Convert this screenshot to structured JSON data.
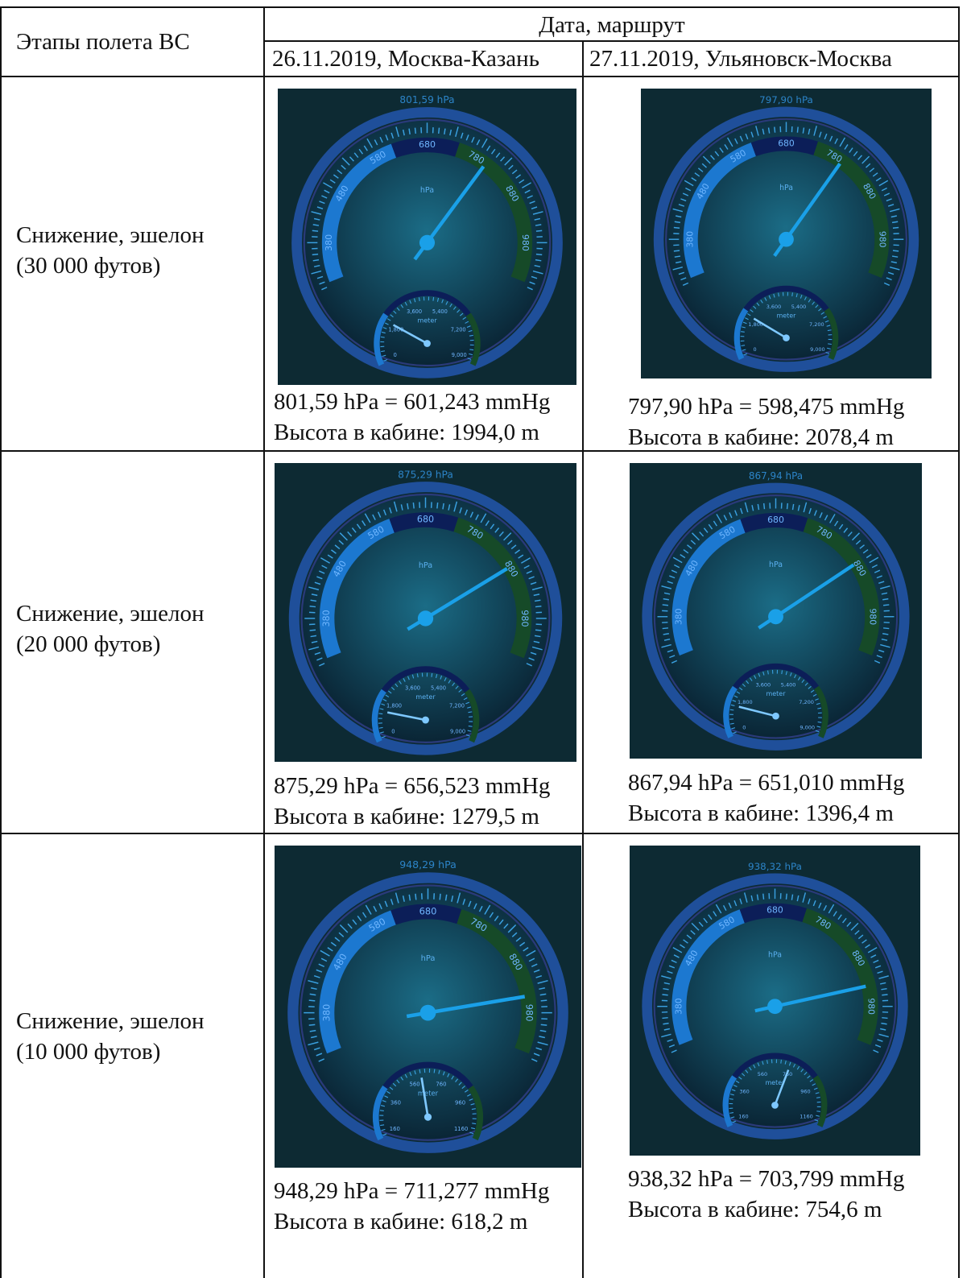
{
  "header": {
    "stage": "Этапы полета ВС",
    "date_route": "Дата, маршрут",
    "flights": [
      "26.11.2019, Москва-Казань",
      "27.11.2019, Ульяновск-Москва"
    ]
  },
  "gauge_scale": {
    "hpa": [
      "380",
      "480",
      "580",
      "680",
      "780",
      "880",
      "980"
    ],
    "unit": "hPa",
    "alt_unit": "meter"
  },
  "rows": [
    {
      "stage": "Снижение, эшелон",
      "level": "(30 000 футов)",
      "cells": [
        {
          "reading": "801,59 hPa",
          "alt_scale": [
            "0",
            "1,800",
            "3,600",
            "5,400",
            "7,200",
            "9,000"
          ],
          "pressure": "801,59 hPa = 601,243 mmHg",
          "altitude": "Высота в кабине: 1994,0 m"
        },
        {
          "reading": "797,90 hPa",
          "alt_scale": [
            "0",
            "1,800",
            "3,600",
            "5,400",
            "7,200",
            "9,000"
          ],
          "pressure": "797,90 hPa = 598,475 mmHg",
          "altitude": "Высота в кабине: 2078,4 m"
        }
      ]
    },
    {
      "stage": "Снижение, эшелон",
      "level": "(20 000 футов)",
      "cells": [
        {
          "reading": "875,29 hPa",
          "alt_scale": [
            "0",
            "1,800",
            "3,600",
            "5,400",
            "7,200",
            "9,000"
          ],
          "pressure": "875,29 hPa = 656,523 mmHg",
          "altitude": "Высота в кабине: 1279,5 m"
        },
        {
          "reading": "867,94 hPa",
          "alt_scale": [
            "0",
            "1,800",
            "3,600",
            "5,400",
            "7,200",
            "9,000"
          ],
          "pressure": "867,94 hPa = 651,010 mmHg",
          "altitude": "Высота в кабине: 1396,4 m"
        }
      ]
    },
    {
      "stage": "Снижение, эшелон",
      "level": "(10 000 футов)",
      "cells": [
        {
          "reading": "948,29 hPa",
          "alt_scale": [
            "160",
            "360",
            "560",
            "760",
            "960",
            "1160"
          ],
          "pressure": "948,29 hPa = 711,277 mmHg",
          "altitude": "Высота в кабине: 618,2 m"
        },
        {
          "reading": "938,32 hPa",
          "alt_scale": [
            "160",
            "360",
            "560",
            "760",
            "960",
            "1160"
          ],
          "pressure": "938,32 hPa = 703,799 mmHg",
          "altitude": "Высота в кабине: 754,6 m"
        }
      ]
    }
  ]
}
